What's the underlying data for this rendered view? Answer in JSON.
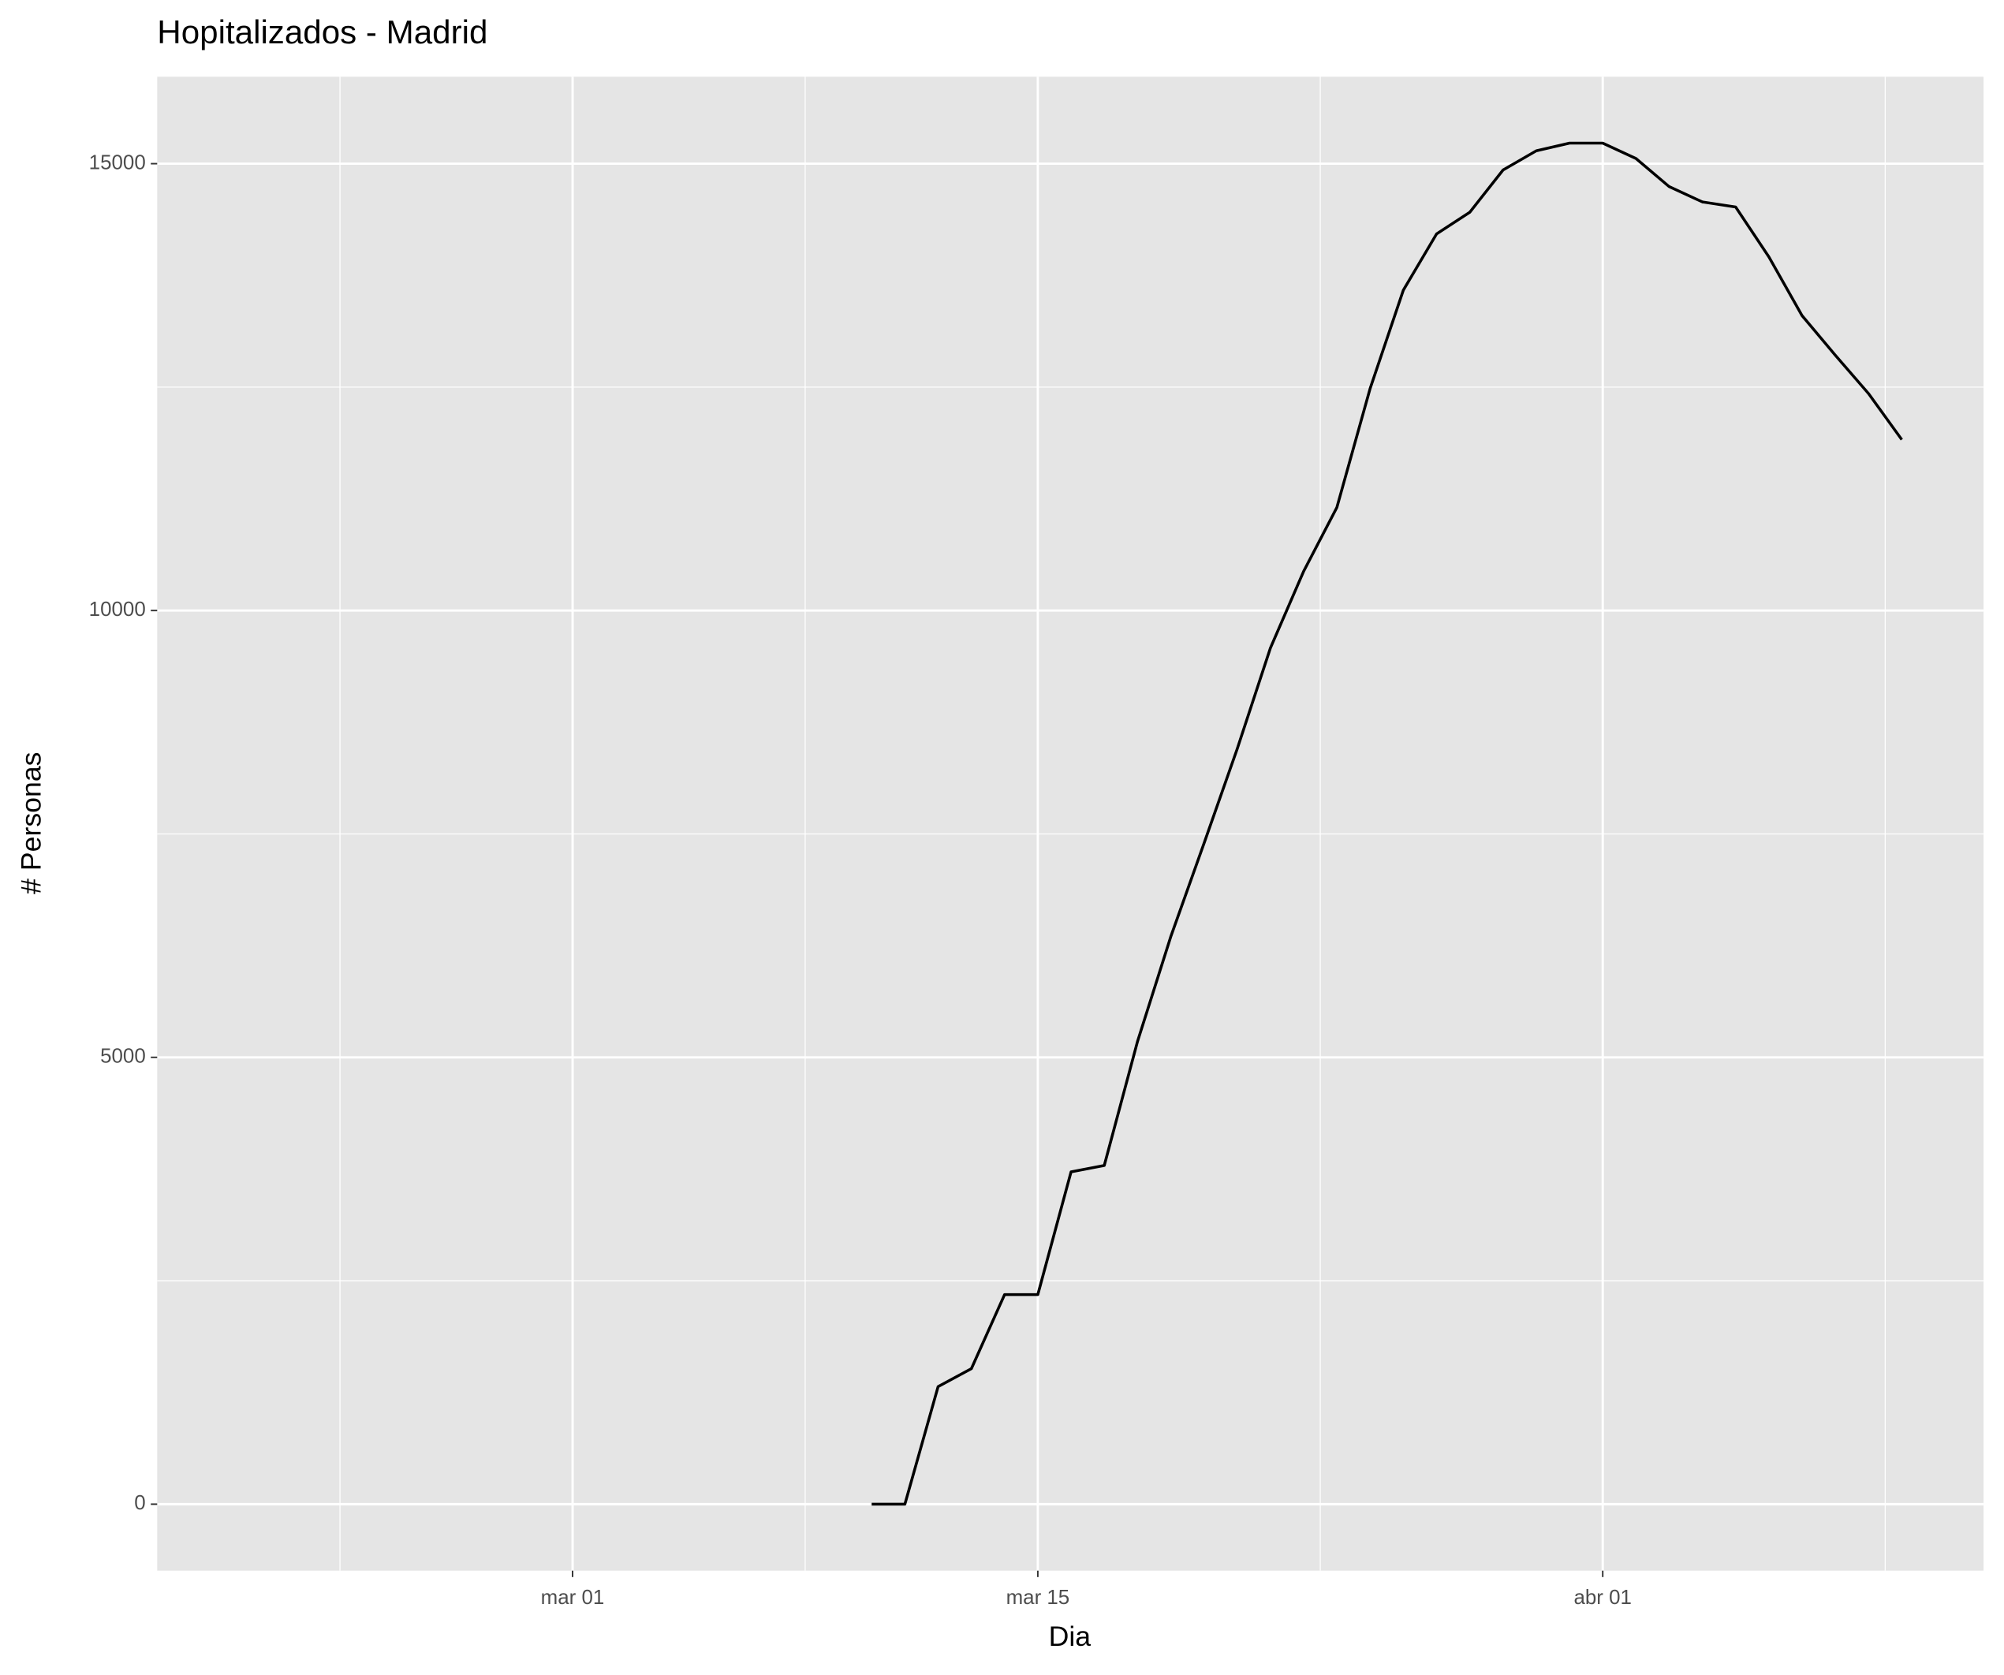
{
  "chart_data": {
    "type": "line",
    "title": "Hopitalizados - Madrid",
    "x_label": "Dia",
    "y_label": "# Personas",
    "x": [
      10,
      11,
      12,
      13,
      14,
      15,
      16,
      17,
      18,
      19,
      20,
      21,
      22,
      23,
      24,
      25,
      26,
      27,
      28,
      29,
      30,
      31,
      32,
      33,
      34,
      35,
      36,
      37,
      38,
      39,
      40,
      41
    ],
    "series": [
      {
        "color": "#000000",
        "values": [
          0,
          0,
          1316,
          1516,
          2345,
          2345,
          3718,
          3790,
          5177,
          6349,
          7393,
          8451,
          9581,
          10439,
          11154,
          12484,
          13585,
          14214,
          14457,
          14929,
          15144,
          15230,
          15230,
          15058,
          14743,
          14572,
          14515,
          13957,
          13299,
          12856,
          12427,
          11912
        ]
      }
    ],
    "xlim": [
      -11.5,
      43.46
    ],
    "xticks": [
      {
        "value": 1,
        "label": "mar 01"
      },
      {
        "value": 15,
        "label": "mar 15"
      },
      {
        "value": 32,
        "label": "abr 01"
      }
    ],
    "ylim": [
      -744,
      15973
    ],
    "yticks": [
      0,
      5000,
      10000,
      15000
    ],
    "grid": true
  }
}
